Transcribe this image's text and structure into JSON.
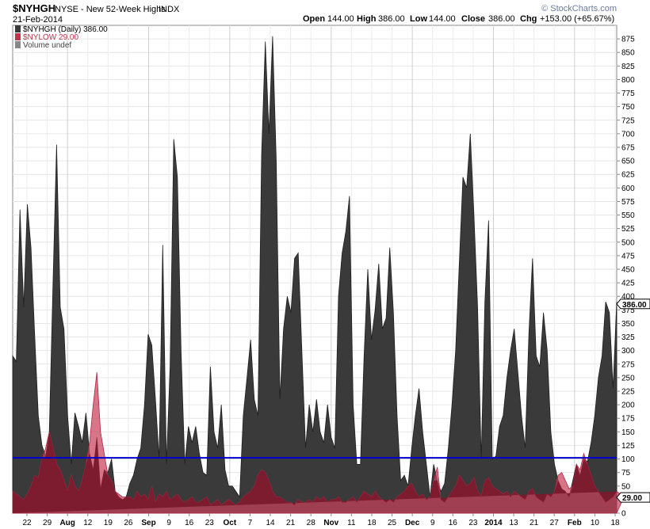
{
  "header": {
    "symbol": "$NYHGH",
    "description": "NYSE - New 52-Week Highs",
    "exchange": "INDX",
    "date": "21-Feb-2014",
    "open_label": "Open",
    "open": "144.00",
    "high_label": "High",
    "high": "386.00",
    "low_label": "Low",
    "low": "144.00",
    "close_label": "Close",
    "close": "386.00",
    "chg_label": "Chg",
    "chg": "+153.00 (+65.67%)",
    "watermark": "© StockCharts.com"
  },
  "legend": [
    {
      "text": "$NYHGH (Daily) 386.00",
      "color": "#3b3b3b"
    },
    {
      "text": "$NYLOW 29.00",
      "color": "#c0334d"
    },
    {
      "text": "Volume undef",
      "color": "#555555"
    }
  ],
  "chart_data": {
    "type": "area",
    "title": "$NYHGH NYSE - New 52-Week Highs INDX",
    "ylim": [
      0,
      900
    ],
    "y_ticks": [
      0,
      25,
      50,
      75,
      100,
      125,
      150,
      175,
      200,
      225,
      250,
      275,
      300,
      325,
      350,
      375,
      400,
      425,
      450,
      475,
      500,
      525,
      550,
      575,
      600,
      625,
      650,
      675,
      700,
      725,
      750,
      775,
      800,
      825,
      850,
      875
    ],
    "x_tick_labels": [
      "22",
      "29",
      "Aug",
      "12",
      "19",
      "26",
      "Sep",
      "9",
      "16",
      "23",
      "Oct",
      "7",
      "14",
      "21",
      "28",
      "Nov",
      "11",
      "18",
      "25",
      "Dec",
      "9",
      "16",
      "23",
      "2014",
      "13",
      "21",
      "27",
      "Feb",
      "10",
      "18"
    ],
    "bold_tick_labels": [
      "Aug",
      "Sep",
      "Oct",
      "Nov",
      "Dec",
      "2014",
      "Feb"
    ],
    "reference_line": {
      "value": 102,
      "color": "#0000cc"
    },
    "last_values": {
      "NYHGH": "386.00",
      "NYLOW": "29.00"
    },
    "series": [
      {
        "name": "$NYHGH",
        "color": "#3a3a3a",
        "values": [
          290,
          280,
          560,
          380,
          570,
          490,
          330,
          180,
          125,
          105,
          150,
          420,
          680,
          380,
          340,
          180,
          90,
          185,
          160,
          130,
          185,
          110,
          80,
          140,
          45,
          80,
          75,
          100,
          40,
          30,
          25,
          30,
          55,
          70,
          100,
          120,
          200,
          330,
          310,
          210,
          100,
          495,
          90,
          270,
          690,
          620,
          300,
          90,
          160,
          130,
          160,
          110,
          75,
          70,
          270,
          150,
          120,
          200,
          80,
          50,
          50,
          40,
          30,
          180,
          250,
          320,
          210,
          180,
          660,
          870,
          700,
          880,
          650,
          210,
          340,
          400,
          370,
          470,
          480,
          300,
          120,
          200,
          150,
          210,
          150,
          130,
          200,
          140,
          120,
          400,
          480,
          520,
          585,
          200,
          90,
          90,
          290,
          450,
          320,
          375,
          460,
          340,
          360,
          490,
          370,
          180,
          60,
          70,
          50,
          120,
          180,
          230,
          150,
          90,
          30,
          90,
          60,
          40,
          55,
          120,
          200,
          300,
          460,
          620,
          600,
          700,
          550,
          380,
          100,
          390,
          540,
          100,
          105,
          160,
          180,
          250,
          300,
          340,
          260,
          180,
          120,
          330,
          470,
          290,
          270,
          370,
          300,
          150,
          90,
          60,
          45,
          40,
          30,
          60,
          90,
          70,
          100,
          95,
          130,
          180,
          250,
          290,
          390,
          370,
          230,
          390
        ],
        "last": "386.00"
      },
      {
        "name": "$NYLOW",
        "color": "#d95f79",
        "values": [
          40,
          35,
          30,
          25,
          35,
          50,
          70,
          65,
          100,
          120,
          150,
          120,
          90,
          80,
          60,
          40,
          70,
          50,
          40,
          60,
          90,
          130,
          200,
          260,
          150,
          110,
          70,
          60,
          40,
          35,
          30,
          30,
          30,
          25,
          40,
          30,
          35,
          25,
          50,
          20,
          35,
          30,
          40,
          25,
          30,
          35,
          25,
          20,
          25,
          30,
          20,
          20,
          25,
          30,
          15,
          20,
          25,
          15,
          20,
          25,
          20,
          15,
          20,
          30,
          35,
          40,
          50,
          70,
          80,
          75,
          60,
          40,
          30,
          30,
          25,
          20,
          20,
          15,
          25,
          20,
          20,
          25,
          20,
          30,
          25,
          30,
          20,
          25,
          25,
          30,
          20,
          20,
          25,
          30,
          20,
          30,
          40,
          35,
          30,
          40,
          30,
          25,
          20,
          25,
          20,
          30,
          35,
          40,
          50,
          55,
          40,
          30,
          35,
          25,
          30,
          60,
          85,
          25,
          20,
          30,
          40,
          50,
          70,
          60,
          50,
          55,
          65,
          40,
          30,
          60,
          65,
          50,
          45,
          40,
          35,
          40,
          30,
          40,
          35,
          30,
          25,
          40,
          45,
          30,
          25,
          20,
          35,
          30,
          40,
          70,
          75,
          60,
          45,
          50,
          90,
          80,
          110,
          90,
          70,
          50,
          40,
          30,
          20,
          25,
          30,
          40,
          35,
          30
        ],
        "last": "29.00"
      }
    ]
  }
}
